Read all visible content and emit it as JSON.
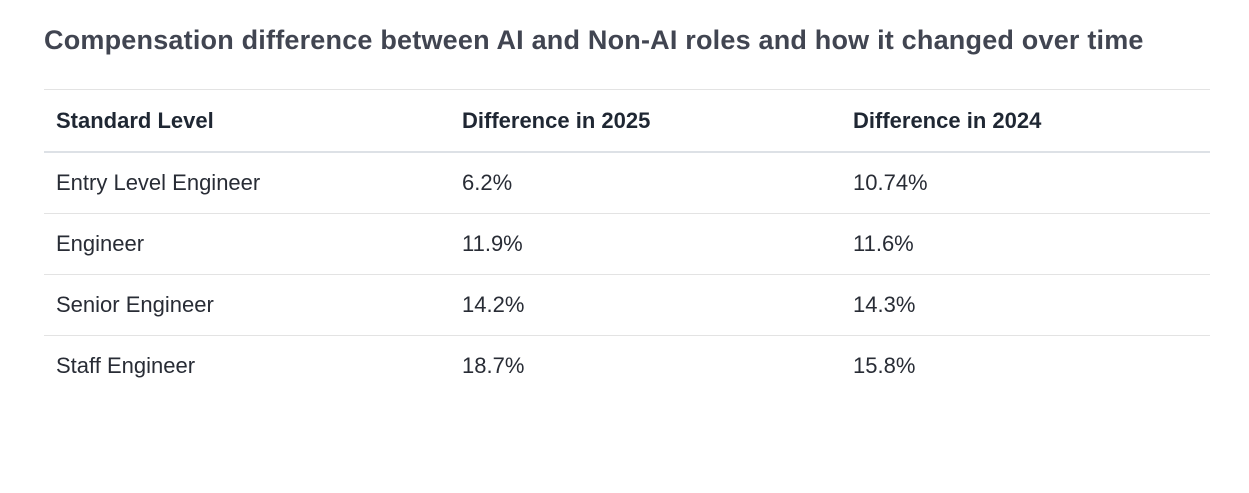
{
  "page": {
    "title": "Compensation difference between AI and Non-AI roles and how it changed over time"
  },
  "table": {
    "columns": [
      "Standard Level",
      "Difference in 2025",
      "Difference in 2024"
    ],
    "rows": [
      {
        "level": "Entry Level Engineer",
        "diff2025": "6.2%",
        "diff2024": "10.74%"
      },
      {
        "level": "Engineer",
        "diff2025": "11.9%",
        "diff2024": "11.6%"
      },
      {
        "level": "Senior Engineer",
        "diff2025": "14.2%",
        "diff2024": "14.3%"
      },
      {
        "level": "Staff Engineer",
        "diff2025": "18.7%",
        "diff2024": "15.8%"
      }
    ]
  },
  "chart_data": {
    "type": "table",
    "title": "Compensation difference between AI and Non-AI roles and how it changed over time",
    "columns": [
      "Standard Level",
      "Difference in 2025",
      "Difference in 2024"
    ],
    "rows": [
      [
        "Entry Level Engineer",
        "6.2%",
        "10.74%"
      ],
      [
        "Engineer",
        "11.9%",
        "11.6%"
      ],
      [
        "Senior Engineer",
        "14.2%",
        "14.3%"
      ],
      [
        "Staff Engineer",
        "18.7%",
        "15.8%"
      ]
    ],
    "values_2025": [
      6.2,
      11.9,
      14.2,
      18.7
    ],
    "values_2024": [
      10.74,
      11.6,
      14.3,
      15.8
    ],
    "unit": "%"
  },
  "colors": {
    "background": "#ffffff",
    "title_text": "#414551",
    "header_text": "#1f2733",
    "cell_text": "#282c35",
    "row_border": "#e3e3e3",
    "header_border": "#dde1e6"
  }
}
